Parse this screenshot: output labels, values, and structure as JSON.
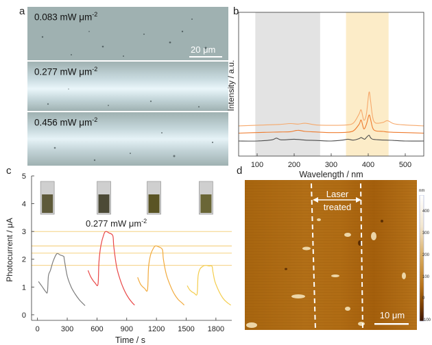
{
  "panel_letters": {
    "a": "a",
    "b": "b",
    "c": "c",
    "d": "d"
  },
  "panel_a": {
    "images": [
      {
        "label_main": "0.083 mW μm",
        "label_exp": "-2"
      },
      {
        "label_main": "0.277 mW μm",
        "label_exp": "-2"
      },
      {
        "label_main": "0.456 mW μm",
        "label_exp": "-2"
      }
    ],
    "scale_bar": "20 μm",
    "colors": {
      "background": "#98abab",
      "stripe": "#dcebf0"
    }
  },
  "panel_b": {
    "chart_data": {
      "type": "line",
      "xlabel": "Wavelength / nm",
      "ylabel": "Intensity / a.u.",
      "xlim": [
        50,
        550
      ],
      "x_ticks": [
        100,
        200,
        300,
        400,
        500
      ],
      "y_ticks": [],
      "shaded_regions": [
        {
          "from": 95,
          "to": 270,
          "color": "#e3e3e3"
        },
        {
          "from": 340,
          "to": 455,
          "color": "#fcecc8"
        }
      ],
      "series": [
        {
          "color": "#f6a86a",
          "offset": 0.52,
          "x": [
            50,
            120,
            160,
            190,
            210,
            230,
            260,
            300,
            340,
            360,
            375,
            381,
            388,
            395,
            402,
            406,
            412,
            420,
            440,
            452,
            470,
            500,
            550
          ],
          "values": [
            0.0,
            0.03,
            0.05,
            0.08,
            0.06,
            0.09,
            0.03,
            0.02,
            0.03,
            0.1,
            0.4,
            0.55,
            0.2,
            0.4,
            1.15,
            0.9,
            0.3,
            0.1,
            0.12,
            0.18,
            0.07,
            0.03,
            0.0
          ]
        },
        {
          "color": "#ee7a2c",
          "offset": 0.27,
          "x": [
            50,
            120,
            160,
            190,
            210,
            230,
            260,
            300,
            340,
            360,
            375,
            381,
            388,
            395,
            402,
            406,
            412,
            420,
            440,
            452,
            470,
            500,
            550
          ],
          "values": [
            0.0,
            0.03,
            0.04,
            0.05,
            0.1,
            0.06,
            0.04,
            0.02,
            0.03,
            0.08,
            0.3,
            0.45,
            0.15,
            0.3,
            0.62,
            0.5,
            0.18,
            0.08,
            0.06,
            0.04,
            0.03,
            0.02,
            0.0
          ]
        },
        {
          "color": "#4a4a4a",
          "offset": 0.0,
          "x": [
            50,
            100,
            140,
            152,
            165,
            200,
            230,
            260,
            300,
            330,
            345,
            360,
            375,
            381,
            390,
            395,
            402,
            406,
            412,
            430,
            450,
            470,
            500,
            550
          ],
          "values": [
            0.0,
            0.0,
            0.04,
            0.1,
            0.04,
            0.06,
            0.03,
            0.02,
            0.0,
            0.03,
            0.06,
            0.03,
            0.08,
            0.12,
            0.06,
            0.12,
            0.2,
            0.12,
            0.06,
            0.04,
            0.03,
            0.02,
            0.0,
            0.0
          ]
        }
      ]
    }
  },
  "panel_c": {
    "chart_data": {
      "type": "line",
      "xlabel": "Time / s",
      "ylabel": "Photocurrent / μA",
      "xlim": [
        -60,
        1960
      ],
      "ylim": [
        -0.2,
        5
      ],
      "x_ticks": [
        0,
        300,
        600,
        900,
        1200,
        1500,
        1800
      ],
      "y_ticks": [
        0,
        1,
        2,
        3,
        4,
        5
      ],
      "annotation": {
        "main": "0.277 mW μm",
        "exp": "-2"
      },
      "reference_lines": [
        {
          "y": 3.0,
          "color": "#f4c96c"
        },
        {
          "y": 2.48,
          "color": "#f4c96c"
        },
        {
          "y": 2.22,
          "color": "#f4c96c"
        },
        {
          "y": 1.78,
          "color": "#f4c96c"
        }
      ],
      "series": [
        {
          "color": "#7d7d7d",
          "x": [
            10,
            50,
            80,
            100,
            110,
            130,
            160,
            195,
            230,
            265,
            270,
            300,
            340,
            380,
            420,
            460,
            480
          ],
          "values": [
            1.2,
            1.0,
            0.85,
            0.82,
            1.4,
            1.6,
            1.95,
            2.2,
            2.15,
            2.1,
            2.0,
            1.4,
            1.0,
            0.75,
            0.55,
            0.4,
            0.33
          ]
        },
        {
          "color": "#e94747",
          "x": [
            510,
            540,
            580,
            610,
            620,
            640,
            670,
            690,
            720,
            760,
            770,
            800,
            840,
            880,
            920,
            960,
            980
          ],
          "values": [
            1.6,
            1.35,
            1.15,
            1.1,
            1.9,
            2.5,
            2.9,
            3.0,
            2.95,
            2.85,
            2.45,
            1.7,
            1.2,
            0.85,
            0.6,
            0.42,
            0.35
          ]
        },
        {
          "color": "#f1a93b",
          "x": [
            1010,
            1040,
            1080,
            1110,
            1120,
            1140,
            1170,
            1190,
            1220,
            1260,
            1270,
            1300,
            1340,
            1380,
            1420,
            1460,
            1480
          ],
          "values": [
            1.35,
            1.1,
            0.95,
            0.9,
            1.7,
            2.15,
            2.4,
            2.48,
            2.45,
            2.35,
            2.0,
            1.45,
            1.05,
            0.75,
            0.55,
            0.42,
            0.35
          ]
        },
        {
          "color": "#f4cd4c",
          "x": [
            1510,
            1540,
            1580,
            1610,
            1620,
            1640,
            1670,
            1700,
            1730,
            1760,
            1770,
            1790,
            1830,
            1870,
            1910,
            1950
          ],
          "values": [
            1.05,
            0.88,
            0.78,
            0.75,
            1.4,
            1.65,
            1.75,
            1.78,
            1.76,
            1.75,
            1.55,
            1.2,
            0.85,
            0.6,
            0.45,
            0.35
          ]
        }
      ],
      "insets": [
        {
          "x_center": 100
        },
        {
          "x_center": 670
        },
        {
          "x_center": 1175
        },
        {
          "x_center": 1700
        }
      ]
    }
  },
  "panel_d": {
    "label_top": "Laser",
    "label_bottom": "treated",
    "scale_bar": "10 μm",
    "colorbar": {
      "unit": "nm",
      "ticks": [
        "400",
        "300",
        "200",
        "100",
        "0",
        "-100"
      ],
      "min": -100,
      "max": 480
    },
    "colors": {
      "dark": "#5a3000",
      "mid": "#b8741a",
      "light": "#e8c890"
    }
  }
}
